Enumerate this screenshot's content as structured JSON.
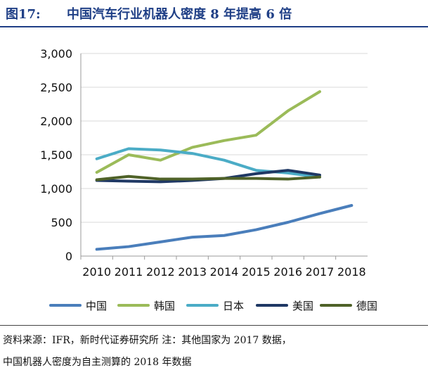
{
  "header": {
    "figure_label": "图17:",
    "title": "中国汽车行业机器人密度 8 年提高 6 倍"
  },
  "chart_data": {
    "type": "line",
    "categories": [
      "2010",
      "2011",
      "2012",
      "2013",
      "2014",
      "2015",
      "2016",
      "2017",
      "2018"
    ],
    "ylim": [
      0,
      3000
    ],
    "yticks": [
      "0",
      "500",
      "1,000",
      "1,500",
      "2,000",
      "2,500",
      "3,000"
    ],
    "ytick_values": [
      0,
      500,
      1000,
      1500,
      2000,
      2500,
      3000
    ],
    "grid": "horizontal",
    "legend_position": "bottom",
    "series": [
      {
        "name": "中国",
        "color": "#4a7ebb",
        "values": [
          100,
          140,
          210,
          280,
          305,
          390,
          500,
          630,
          750
        ]
      },
      {
        "name": "韩国",
        "color": "#9bbb59",
        "values": [
          1240,
          1500,
          1420,
          1610,
          1710,
          1790,
          2150,
          2435,
          null
        ]
      },
      {
        "name": "日本",
        "color": "#4bacc6",
        "values": [
          1440,
          1590,
          1570,
          1520,
          1420,
          1270,
          1230,
          1170,
          null
        ]
      },
      {
        "name": "美国",
        "color": "#1f3864",
        "values": [
          1120,
          1110,
          1100,
          1120,
          1150,
          1220,
          1270,
          1200,
          null
        ]
      },
      {
        "name": "德国",
        "color": "#4f6228",
        "values": [
          1130,
          1180,
          1140,
          1140,
          1150,
          1150,
          1140,
          1170,
          null
        ]
      }
    ]
  },
  "footer": {
    "source_line1": "资料来源：IFR，新时代证券研究所    注：其他国家为 2017 数据，",
    "source_line2": "中国机器人密度为自主测算的 2018 年数据"
  }
}
